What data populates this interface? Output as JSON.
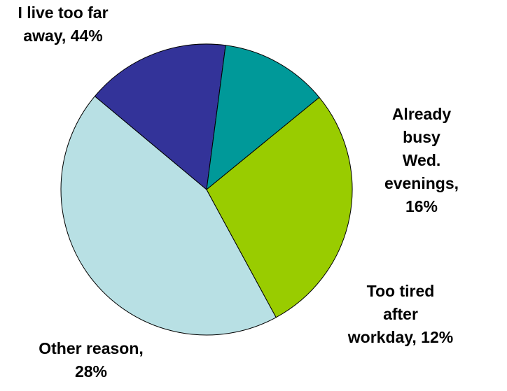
{
  "chart_data": {
    "type": "pie",
    "slices": [
      {
        "label": "I live too far\naway, 44%",
        "value": 44,
        "color": "#b8e0e4"
      },
      {
        "label": "Already busy\nWed. evenings,\n16%",
        "value": 16,
        "color": "#333399"
      },
      {
        "label": "Too tired after\nworkday, 12%",
        "value": 12,
        "color": "#009999"
      },
      {
        "label": "Other reason,\n28%",
        "value": 28,
        "color": "#99cc00"
      }
    ]
  }
}
